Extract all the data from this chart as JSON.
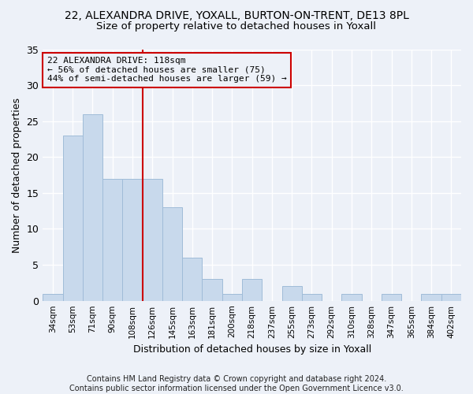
{
  "title": "22, ALEXANDRA DRIVE, YOXALL, BURTON-ON-TRENT, DE13 8PL",
  "subtitle": "Size of property relative to detached houses in Yoxall",
  "xlabel": "Distribution of detached houses by size in Yoxall",
  "ylabel": "Number of detached properties",
  "categories": [
    "34sqm",
    "53sqm",
    "71sqm",
    "90sqm",
    "108sqm",
    "126sqm",
    "145sqm",
    "163sqm",
    "181sqm",
    "200sqm",
    "218sqm",
    "237sqm",
    "255sqm",
    "273sqm",
    "292sqm",
    "310sqm",
    "328sqm",
    "347sqm",
    "365sqm",
    "384sqm",
    "402sqm"
  ],
  "values": [
    1,
    23,
    26,
    17,
    17,
    17,
    13,
    6,
    3,
    1,
    3,
    0,
    2,
    1,
    0,
    1,
    0,
    1,
    0,
    1,
    1
  ],
  "bar_color": "#c8d9ec",
  "bar_edge_color": "#a0bcd8",
  "vline_x": 4.5,
  "vline_color": "#cc0000",
  "annotation_line1": "22 ALEXANDRA DRIVE: 118sqm",
  "annotation_line2": "← 56% of detached houses are smaller (75)",
  "annotation_line3": "44% of semi-detached houses are larger (59) →",
  "annotation_box_color": "#cc0000",
  "ylim": [
    0,
    35
  ],
  "yticks": [
    0,
    5,
    10,
    15,
    20,
    25,
    30,
    35
  ],
  "footer": "Contains HM Land Registry data © Crown copyright and database right 2024.\nContains public sector information licensed under the Open Government Licence v3.0.",
  "bg_color": "#edf1f8",
  "grid_color": "#ffffff",
  "title_fontsize": 10,
  "subtitle_fontsize": 9.5,
  "footer_fontsize": 7,
  "annotation_fontsize": 8
}
